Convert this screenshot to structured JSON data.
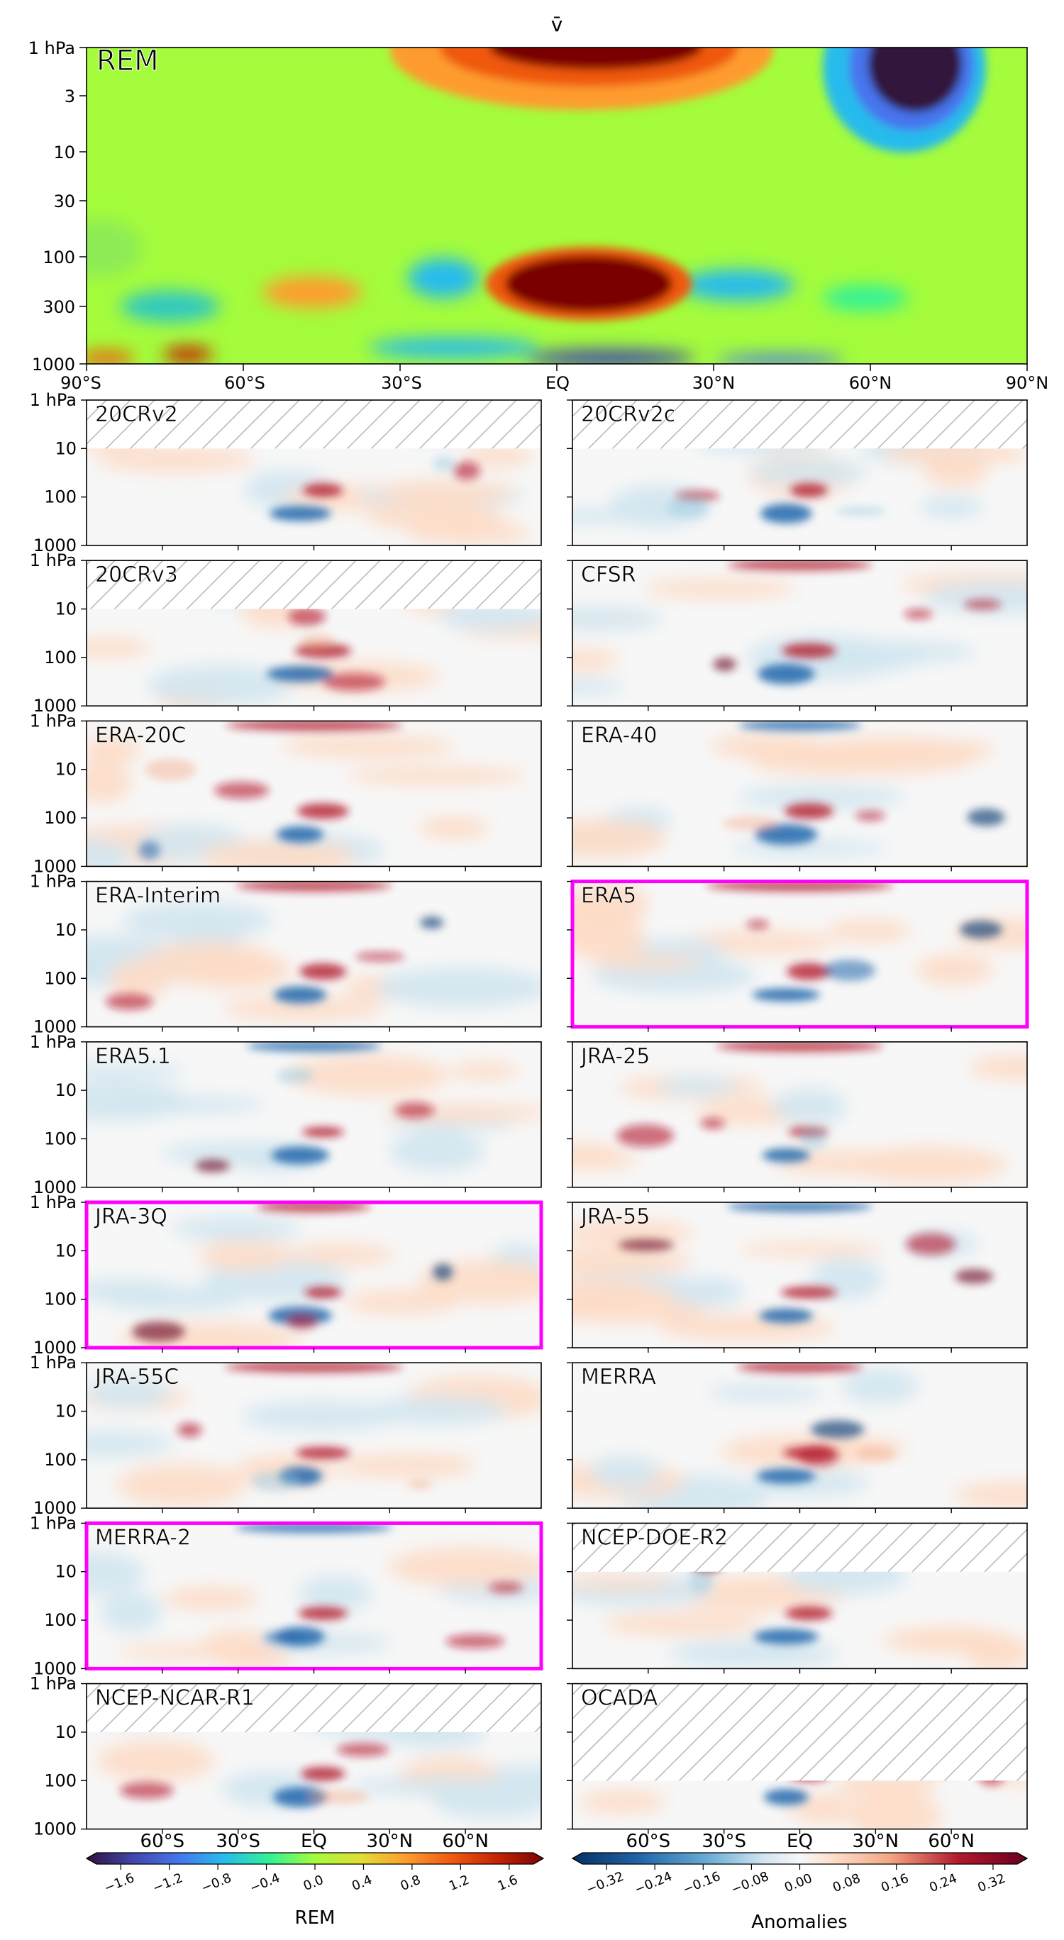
{
  "chart_data": [
    {
      "type": "heatmap",
      "title": "v̄",
      "panel_label": "REM",
      "x_ticks": [
        "90°S",
        "60°S",
        "30°S",
        "EQ",
        "30°N",
        "60°N",
        "90°N"
      ],
      "y_ticks": [
        "1 hPa",
        "3",
        "10",
        "30",
        "100",
        "300",
        "1000"
      ],
      "y_scale": "log",
      "ylim": [
        1000,
        1
      ],
      "xlim": [
        -90,
        90
      ]
    },
    {
      "type": "heatmap",
      "panels": [
        {
          "name": "20CRv2",
          "top_hpa": 10,
          "highlight": false
        },
        {
          "name": "20CRv2c",
          "top_hpa": 10,
          "highlight": false
        },
        {
          "name": "20CRv3",
          "top_hpa": 10,
          "highlight": false
        },
        {
          "name": "CFSR",
          "top_hpa": 1,
          "highlight": false
        },
        {
          "name": "ERA-20C",
          "top_hpa": 1,
          "highlight": false
        },
        {
          "name": "ERA-40",
          "top_hpa": 1,
          "highlight": false
        },
        {
          "name": "ERA-Interim",
          "top_hpa": 1,
          "highlight": false
        },
        {
          "name": "ERA5",
          "top_hpa": 1,
          "highlight": true
        },
        {
          "name": "ERA5.1",
          "top_hpa": 1,
          "highlight": false
        },
        {
          "name": "JRA-25",
          "top_hpa": 1,
          "highlight": false
        },
        {
          "name": "JRA-3Q",
          "top_hpa": 1,
          "highlight": true
        },
        {
          "name": "JRA-55",
          "top_hpa": 1,
          "highlight": false
        },
        {
          "name": "JRA-55C",
          "top_hpa": 1,
          "highlight": false
        },
        {
          "name": "MERRA",
          "top_hpa": 1,
          "highlight": false
        },
        {
          "name": "MERRA-2",
          "top_hpa": 1,
          "highlight": true
        },
        {
          "name": "NCEP-DOE-R2",
          "top_hpa": 10,
          "highlight": false
        },
        {
          "name": "NCEP-NCAR-R1",
          "top_hpa": 10,
          "highlight": false
        },
        {
          "name": "OCADA",
          "top_hpa": 100,
          "highlight": false
        }
      ],
      "y_ticks": [
        "1 hPa",
        "10",
        "100",
        "1000"
      ],
      "x_ticks": [
        "60°S",
        "30°S",
        "EQ",
        "30°N",
        "60°N"
      ]
    }
  ],
  "colorbars": {
    "rem": {
      "label": "REM",
      "ticks": [
        "−1.6",
        "−1.2",
        "−0.8",
        "−0.4",
        "0.0",
        "0.4",
        "0.8",
        "1.2",
        "1.6"
      ],
      "range": [
        -1.8,
        1.8
      ]
    },
    "anomalies": {
      "label": "Anomalies",
      "ticks": [
        "−0.32",
        "−0.24",
        "−0.16",
        "−0.08",
        "0.00",
        "0.08",
        "0.16",
        "0.24",
        "0.32"
      ],
      "range": [
        -0.36,
        0.36
      ]
    }
  },
  "colors": {
    "highlight": "#ff00ff",
    "rem_label": "#ff00ff",
    "hatch": "#bbbbbb"
  }
}
